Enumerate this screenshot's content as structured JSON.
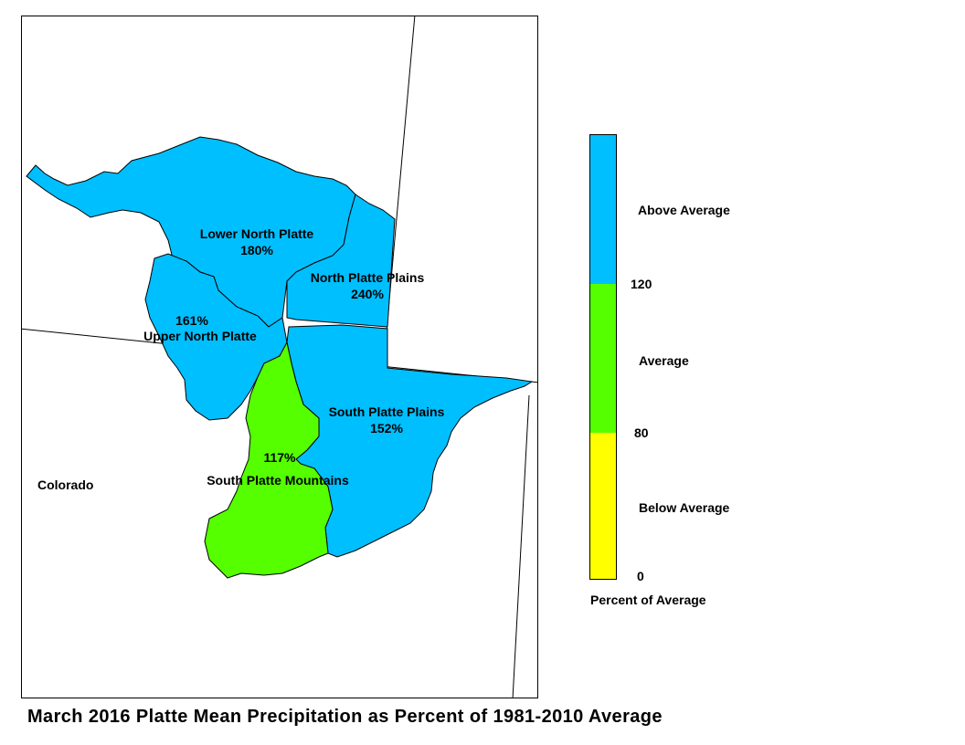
{
  "map": {
    "title": "March 2016 Platte Mean Precipitation as Percent of 1981-2010 Average",
    "state_label": "Colorado",
    "regions": [
      {
        "id": "lower-north-platte",
        "name": "Lower North Platte",
        "value": "180%",
        "category": "above"
      },
      {
        "id": "north-platte-plains",
        "name": "North Platte Plains",
        "value": "240%",
        "category": "above"
      },
      {
        "id": "upper-north-platte",
        "name": "Upper North Platte",
        "value": "161%",
        "category": "above"
      },
      {
        "id": "south-platte-plains",
        "name": "South Platte Plains",
        "value": "152%",
        "category": "above"
      },
      {
        "id": "south-platte-mountains",
        "name": "South Platte Mountains",
        "value": "117%",
        "category": "average"
      }
    ]
  },
  "legend": {
    "title": "Percent of Average",
    "classes": [
      {
        "label": "Above Average",
        "color": "#00BFFF"
      },
      {
        "label": "Average",
        "color": "#55FF00"
      },
      {
        "label": "Below Average",
        "color": "#FFFF00"
      }
    ],
    "breaks": [
      "120",
      "80",
      "0"
    ]
  }
}
